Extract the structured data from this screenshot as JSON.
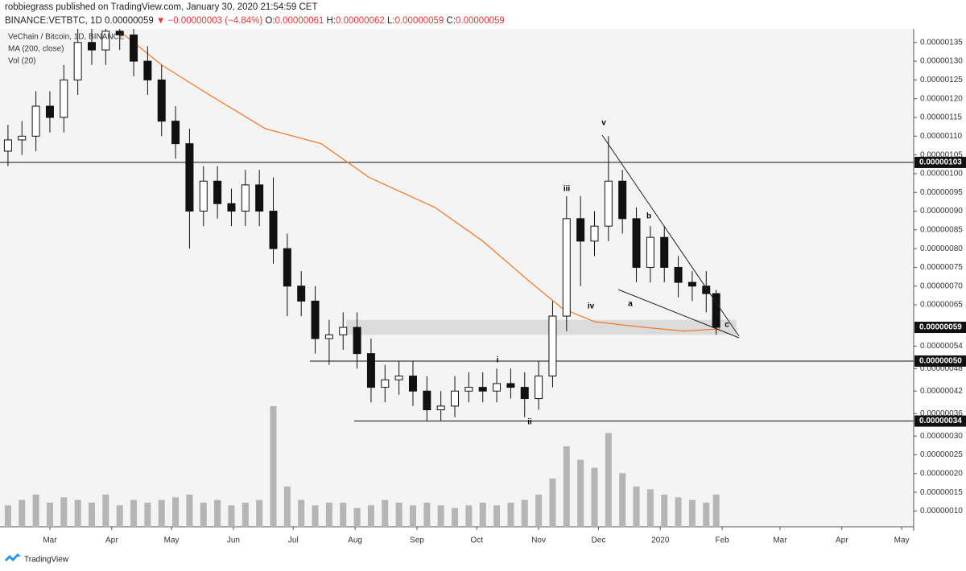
{
  "header": {
    "publisher": "robbiegrass published on TradingView.com, January 30, 2020 21:54:59 CET",
    "symbol": "BINANCE:VETBTC, 1D",
    "last": "0.00000059",
    "change": "▼ −0.00000003 (−4.84%)",
    "ohlc": [
      {
        "label": "O:",
        "value": "0.00000061"
      },
      {
        "label": "H:",
        "value": "0.00000062"
      },
      {
        "label": "L:",
        "value": "0.00000059"
      },
      {
        "label": "C:",
        "value": "0.00000059"
      }
    ]
  },
  "chart_data": {
    "type": "candlestick",
    "title": "VeChain / Bitcoin, 1D, BINANCE",
    "x": [
      -21,
      -14,
      -7,
      0,
      7,
      14,
      21,
      28,
      35,
      42,
      49,
      56,
      63,
      70,
      77,
      84,
      91,
      98,
      105,
      112,
      119,
      126,
      133,
      140,
      147,
      154,
      161,
      168,
      175,
      182,
      189,
      196,
      203,
      210,
      217,
      224,
      231,
      238,
      245,
      252,
      259,
      266,
      273,
      280,
      287,
      294,
      301,
      308,
      315,
      322,
      329,
      334
    ],
    "open": [
      1.06e-07,
      1.09e-07,
      1.1e-07,
      1.18e-07,
      1.15e-07,
      1.25e-07,
      1.35e-07,
      1.33e-07,
      1.38e-07,
      1.37e-07,
      1.3e-07,
      1.25e-07,
      1.14e-07,
      1.08e-07,
      9e-08,
      9.8e-08,
      9.2e-08,
      9e-08,
      9.7e-08,
      9e-08,
      8e-08,
      7e-08,
      6.6e-08,
      5.6e-08,
      5.7e-08,
      5.9e-08,
      5.2e-08,
      4.3e-08,
      4.5e-08,
      4.6e-08,
      4.2e-08,
      3.7e-08,
      3.8e-08,
      4.2e-08,
      4.3e-08,
      4.2e-08,
      4.4e-08,
      4.3e-08,
      4e-08,
      4.6e-08,
      6.2e-08,
      8.8e-08,
      8.2e-08,
      8.6e-08,
      9.8e-08,
      8.8e-08,
      7.5e-08,
      8.3e-08,
      7.5e-08,
      7.1e-08,
      7e-08,
      6.8e-08
    ],
    "high": [
      1.13e-07,
      1.14e-07,
      1.22e-07,
      1.22e-07,
      1.29e-07,
      1.39e-07,
      1.39e-07,
      1.42e-07,
      1.42e-07,
      1.41e-07,
      1.34e-07,
      1.29e-07,
      1.18e-07,
      1.12e-07,
      1.02e-07,
      1.02e-07,
      9.6e-08,
      1.01e-07,
      1.01e-07,
      9.9e-08,
      8.4e-08,
      7.4e-08,
      7e-08,
      6.1e-08,
      6.3e-08,
      6.3e-08,
      5.6e-08,
      4.9e-08,
      5e-08,
      5e-08,
      4.6e-08,
      4.2e-08,
      4.6e-08,
      4.7e-08,
      4.7e-08,
      4.8e-08,
      4.8e-08,
      4.7e-08,
      5e-08,
      6.6e-08,
      9.4e-08,
      9.4e-08,
      9e-08,
      1.1e-07,
      1.01e-07,
      9.1e-08,
      8.6e-08,
      8.6e-08,
      7.8e-08,
      7.4e-08,
      7.4e-08,
      6.9e-08
    ],
    "low": [
      1.02e-07,
      1.05e-07,
      1.06e-07,
      1.11e-07,
      1.11e-07,
      1.21e-07,
      1.29e-07,
      1.29e-07,
      1.33e-07,
      1.26e-07,
      1.21e-07,
      1.1e-07,
      1.04e-07,
      8e-08,
      8.6e-08,
      8.8e-08,
      8.6e-08,
      8.6e-08,
      8.6e-08,
      7.6e-08,
      6.2e-08,
      6.2e-08,
      5.2e-08,
      4.9e-08,
      5.3e-08,
      4.8e-08,
      3.9e-08,
      3.9e-08,
      4.1e-08,
      3.8e-08,
      3.4e-08,
      3.4e-08,
      3.5e-08,
      3.9e-08,
      3.9e-08,
      3.9e-08,
      4e-08,
      3.5e-08,
      3.7e-08,
      4.3e-08,
      5.8e-08,
      7e-08,
      7.8e-08,
      8.2e-08,
      8.4e-08,
      7.1e-08,
      7.1e-08,
      7.1e-08,
      6.7e-08,
      6.6e-08,
      6.3e-08,
      5.7e-08
    ],
    "close": [
      1.09e-07,
      1.1e-07,
      1.18e-07,
      1.15e-07,
      1.25e-07,
      1.35e-07,
      1.33e-07,
      1.38e-07,
      1.37e-07,
      1.3e-07,
      1.25e-07,
      1.14e-07,
      1.08e-07,
      9e-08,
      9.8e-08,
      9.2e-08,
      9e-08,
      9.7e-08,
      9e-08,
      8e-08,
      7e-08,
      6.6e-08,
      5.6e-08,
      5.7e-08,
      5.9e-08,
      5.2e-08,
      4.3e-08,
      4.5e-08,
      4.6e-08,
      4.2e-08,
      3.7e-08,
      3.8e-08,
      4.2e-08,
      4.3e-08,
      4.2e-08,
      4.4e-08,
      4.3e-08,
      4e-08,
      4.6e-08,
      6.2e-08,
      8.8e-08,
      8.2e-08,
      8.6e-08,
      9.8e-08,
      8.8e-08,
      7.5e-08,
      8.3e-08,
      7.5e-08,
      7.1e-08,
      7e-08,
      6.8e-08,
      5.9e-08
    ],
    "volume_label": "Vol (20)",
    "volume": [
      8,
      10,
      12,
      9,
      11,
      10,
      9,
      12,
      8,
      10,
      9,
      10,
      11,
      12,
      9,
      10,
      8,
      9,
      10,
      45,
      15,
      10,
      8,
      9,
      9,
      7,
      8,
      10,
      9,
      8,
      9,
      8,
      7,
      8,
      9,
      8,
      9,
      10,
      12,
      18,
      30,
      25,
      22,
      35,
      20,
      15,
      14,
      12,
      11,
      10,
      9,
      12
    ],
    "ma": {
      "name": "MA (200, close)",
      "color": "#f57c33",
      "x": [
        35,
        56,
        80,
        108,
        136,
        160,
        193,
        217,
        241,
        257,
        273,
        298,
        318,
        336
      ],
      "values": [
        1.38e-07,
        1.29e-07,
        1.21e-07,
        1.12e-07,
        1.08e-07,
        9.9e-08,
        9.1e-08,
        8.2e-08,
        7.1e-08,
        6.4e-08,
        6.05e-08,
        5.9e-08,
        5.8e-08,
        5.86e-08
      ]
    },
    "xlim": [
      -25,
      433
    ],
    "xticks": [
      {
        "value": 0,
        "label": "Mar"
      },
      {
        "value": 31,
        "label": "Apr"
      },
      {
        "value": 61,
        "label": "May"
      },
      {
        "value": 92,
        "label": "Jun"
      },
      {
        "value": 122,
        "label": "Jul"
      },
      {
        "value": 153,
        "label": "Aug"
      },
      {
        "value": 184,
        "label": "Sep"
      },
      {
        "value": 214,
        "label": "Oct"
      },
      {
        "value": 245,
        "label": "Nov"
      },
      {
        "value": 275,
        "label": "Dec"
      },
      {
        "value": 306,
        "label": "2020"
      },
      {
        "value": 337,
        "label": "Feb"
      },
      {
        "value": 366,
        "label": "Mar"
      },
      {
        "value": 397,
        "label": "Apr"
      },
      {
        "value": 427,
        "label": "May"
      }
    ],
    "ylim": [
      5.8e-09,
      1.386e-07
    ],
    "yticks": [
      {
        "value": 1.35e-07,
        "label": "0.00000135"
      },
      {
        "value": 1.3e-07,
        "label": "0.00000130"
      },
      {
        "value": 1.25e-07,
        "label": "0.00000125"
      },
      {
        "value": 1.2e-07,
        "label": "0.00000120"
      },
      {
        "value": 1.15e-07,
        "label": "0.00000115"
      },
      {
        "value": 1.1e-07,
        "label": "0.00000110"
      },
      {
        "value": 1.05e-07,
        "label": "0.00000105"
      },
      {
        "value": 1e-07,
        "label": "0.00000100"
      },
      {
        "value": 9.5e-08,
        "label": "0.00000095"
      },
      {
        "value": 9e-08,
        "label": "0.00000090"
      },
      {
        "value": 8.5e-08,
        "label": "0.00000085"
      },
      {
        "value": 8e-08,
        "label": "0.00000080"
      },
      {
        "value": 7.5e-08,
        "label": "0.00000075"
      },
      {
        "value": 7e-08,
        "label": "0.00000070"
      },
      {
        "value": 6.5e-08,
        "label": "0.00000065"
      },
      {
        "value": 5.4e-08,
        "label": "0.00000054"
      },
      {
        "value": 4.8e-08,
        "label": "0.00000048"
      },
      {
        "value": 4.2e-08,
        "label": "0.00000042"
      },
      {
        "value": 3.6e-08,
        "label": "0.00000036"
      },
      {
        "value": 3e-08,
        "label": "0.00000030"
      },
      {
        "value": 2.5e-08,
        "label": "0.00000025"
      },
      {
        "value": 2e-08,
        "label": "0.00000020"
      },
      {
        "value": 1.5e-08,
        "label": "0.00000015"
      },
      {
        "value": 1e-08,
        "label": "0.00000010"
      }
    ],
    "levels": [
      {
        "value": 1.03e-07,
        "label": "0.00000103"
      },
      {
        "value": 5e-08,
        "label": "0.00000050"
      },
      {
        "value": 3.4e-08,
        "label": "0.00000034"
      }
    ],
    "last_price": {
      "value": 5.9e-08,
      "label": "0.00000059"
    },
    "zone": [
      5.7e-08,
      6.1e-08
    ],
    "annotations": [
      "i",
      "ii",
      "iii",
      "iv",
      "v",
      "a",
      "b",
      "c"
    ]
  },
  "footer": "TradingView"
}
